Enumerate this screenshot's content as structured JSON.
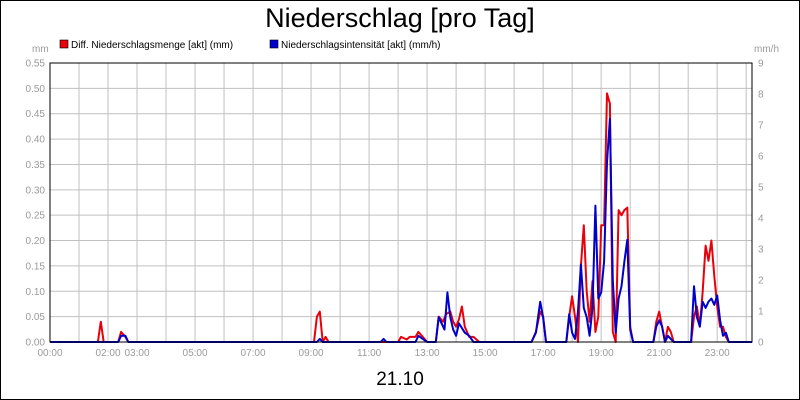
{
  "chart_data": {
    "type": "line",
    "title": "Niederschlag [pro Tag]",
    "date_label": "21.10",
    "ylabel_left": "mm",
    "ylabel_right": "mm/h",
    "x_ticks": [
      "00:00",
      "02:00",
      "03:00",
      "05:00",
      "07:00",
      "09:00",
      "11:00",
      "13:00",
      "15:00",
      "17:00",
      "19:00",
      "21:00",
      "23:00"
    ],
    "x_tick_hours": [
      0,
      2,
      3,
      5,
      7,
      9,
      11,
      13,
      15,
      17,
      19,
      21,
      23
    ],
    "x_range_hours": [
      0,
      24.2
    ],
    "left_ticks": [
      "0.00",
      "0.05",
      "0.10",
      "0.15",
      "0.20",
      "0.25",
      "0.30",
      "0.35",
      "0.40",
      "0.45",
      "0.50",
      "0.55"
    ],
    "left_range": [
      0,
      0.55
    ],
    "right_ticks": [
      "0",
      "1",
      "2",
      "3",
      "4",
      "5",
      "6",
      "7",
      "8",
      "9"
    ],
    "right_range": [
      0,
      9
    ],
    "grid": true,
    "legend_position": "top",
    "series": [
      {
        "name": "Diff. Niederschlagsmenge [akt] (mm)",
        "color": "#e8000b",
        "axis": "left",
        "points": [
          [
            0,
            0
          ],
          [
            1.65,
            0
          ],
          [
            1.75,
            0.04
          ],
          [
            1.85,
            0
          ],
          [
            2.35,
            0
          ],
          [
            2.45,
            0.02
          ],
          [
            2.6,
            0.01
          ],
          [
            2.7,
            0
          ],
          [
            9.1,
            0
          ],
          [
            9.2,
            0.05
          ],
          [
            9.3,
            0.06
          ],
          [
            9.4,
            0
          ],
          [
            9.5,
            0.01
          ],
          [
            9.6,
            0
          ],
          [
            11.5,
            0
          ],
          [
            12.0,
            0
          ],
          [
            12.1,
            0.01
          ],
          [
            12.3,
            0.005
          ],
          [
            12.4,
            0.01
          ],
          [
            12.6,
            0.01
          ],
          [
            12.7,
            0.02
          ],
          [
            12.85,
            0.01
          ],
          [
            13.0,
            0
          ],
          [
            13.3,
            0
          ],
          [
            13.4,
            0.05
          ],
          [
            13.55,
            0.04
          ],
          [
            13.65,
            0.055
          ],
          [
            13.8,
            0.06
          ],
          [
            13.9,
            0.04
          ],
          [
            14.0,
            0.03
          ],
          [
            14.1,
            0.045
          ],
          [
            14.2,
            0.07
          ],
          [
            14.3,
            0.03
          ],
          [
            14.45,
            0.01
          ],
          [
            14.6,
            0.01
          ],
          [
            14.8,
            0
          ],
          [
            15.1,
            0
          ],
          [
            16.6,
            0
          ],
          [
            16.75,
            0.02
          ],
          [
            16.9,
            0.06
          ],
          [
            17.0,
            0.05
          ],
          [
            17.1,
            0
          ],
          [
            17.8,
            0
          ],
          [
            17.9,
            0.05
          ],
          [
            18.0,
            0.09
          ],
          [
            18.1,
            0.05
          ],
          [
            18.2,
            0
          ],
          [
            18.3,
            0.15
          ],
          [
            18.4,
            0.23
          ],
          [
            18.5,
            0.1
          ],
          [
            18.6,
            0.04
          ],
          [
            18.7,
            0.12
          ],
          [
            18.8,
            0.02
          ],
          [
            18.9,
            0.05
          ],
          [
            19.0,
            0.23
          ],
          [
            19.1,
            0.23
          ],
          [
            19.2,
            0.49
          ],
          [
            19.3,
            0.47
          ],
          [
            19.4,
            0.02
          ],
          [
            19.5,
            0
          ],
          [
            19.6,
            0.26
          ],
          [
            19.7,
            0.25
          ],
          [
            19.8,
            0.26
          ],
          [
            19.9,
            0.265
          ],
          [
            20.0,
            0.03
          ],
          [
            20.1,
            0
          ],
          [
            20.8,
            0
          ],
          [
            20.9,
            0.04
          ],
          [
            21.0,
            0.06
          ],
          [
            21.1,
            0.03
          ],
          [
            21.2,
            0
          ],
          [
            21.3,
            0.03
          ],
          [
            21.4,
            0.02
          ],
          [
            21.5,
            0
          ],
          [
            22.1,
            0
          ],
          [
            22.2,
            0.05
          ],
          [
            22.3,
            0.07
          ],
          [
            22.4,
            0.03
          ],
          [
            22.5,
            0.1
          ],
          [
            22.6,
            0.19
          ],
          [
            22.7,
            0.16
          ],
          [
            22.8,
            0.2
          ],
          [
            22.9,
            0.13
          ],
          [
            23.0,
            0.07
          ],
          [
            23.1,
            0.03
          ],
          [
            23.2,
            0.03
          ],
          [
            23.3,
            0.01
          ],
          [
            23.4,
            0
          ],
          [
            24.2,
            0
          ]
        ]
      },
      {
        "name": "Niederschlagsintensität [akt] (mm/h)",
        "color": "#0000cc",
        "axis": "right",
        "points": [
          [
            0,
            0
          ],
          [
            2.35,
            0
          ],
          [
            2.45,
            0.2
          ],
          [
            2.6,
            0.2
          ],
          [
            2.7,
            0
          ],
          [
            9.2,
            0
          ],
          [
            9.3,
            0.1
          ],
          [
            9.4,
            0
          ],
          [
            11.4,
            0
          ],
          [
            11.5,
            0.1
          ],
          [
            11.6,
            0
          ],
          [
            12.6,
            0
          ],
          [
            12.7,
            0.2
          ],
          [
            12.85,
            0.1
          ],
          [
            13.0,
            0
          ],
          [
            13.3,
            0
          ],
          [
            13.4,
            0.8
          ],
          [
            13.5,
            0.6
          ],
          [
            13.6,
            0.4
          ],
          [
            13.7,
            1.6
          ],
          [
            13.8,
            0.8
          ],
          [
            13.9,
            0.4
          ],
          [
            14.0,
            0.2
          ],
          [
            14.1,
            0.6
          ],
          [
            14.3,
            0.3
          ],
          [
            14.45,
            0.2
          ],
          [
            14.6,
            0
          ],
          [
            16.6,
            0
          ],
          [
            16.75,
            0.3
          ],
          [
            16.9,
            1.3
          ],
          [
            17.0,
            0.8
          ],
          [
            17.1,
            0
          ],
          [
            17.8,
            0
          ],
          [
            17.9,
            0.9
          ],
          [
            18.0,
            0.3
          ],
          [
            18.1,
            0.1
          ],
          [
            18.2,
            1.0
          ],
          [
            18.3,
            2.5
          ],
          [
            18.4,
            1.1
          ],
          [
            18.5,
            0.8
          ],
          [
            18.6,
            0.2
          ],
          [
            18.7,
            1.1
          ],
          [
            18.8,
            4.4
          ],
          [
            18.9,
            1.4
          ],
          [
            19.0,
            1.6
          ],
          [
            19.1,
            2.6
          ],
          [
            19.2,
            5.8
          ],
          [
            19.3,
            7.2
          ],
          [
            19.4,
            2.0
          ],
          [
            19.5,
            0.3
          ],
          [
            19.6,
            1.4
          ],
          [
            19.7,
            1.8
          ],
          [
            19.8,
            2.6
          ],
          [
            19.9,
            3.3
          ],
          [
            20.0,
            0.4
          ],
          [
            20.1,
            0
          ],
          [
            20.8,
            0
          ],
          [
            20.9,
            0.5
          ],
          [
            21.0,
            0.7
          ],
          [
            21.1,
            0.5
          ],
          [
            21.2,
            0
          ],
          [
            21.3,
            0.2
          ],
          [
            21.4,
            0.1
          ],
          [
            21.5,
            0
          ],
          [
            22.1,
            0
          ],
          [
            22.2,
            1.8
          ],
          [
            22.3,
            0.8
          ],
          [
            22.4,
            0.5
          ],
          [
            22.5,
            1.3
          ],
          [
            22.6,
            1.1
          ],
          [
            22.7,
            1.3
          ],
          [
            22.8,
            1.4
          ],
          [
            22.9,
            1.2
          ],
          [
            23.0,
            1.5
          ],
          [
            23.1,
            0.7
          ],
          [
            23.2,
            0.2
          ],
          [
            23.3,
            0.3
          ],
          [
            23.4,
            0
          ],
          [
            24.2,
            0
          ]
        ]
      }
    ]
  }
}
